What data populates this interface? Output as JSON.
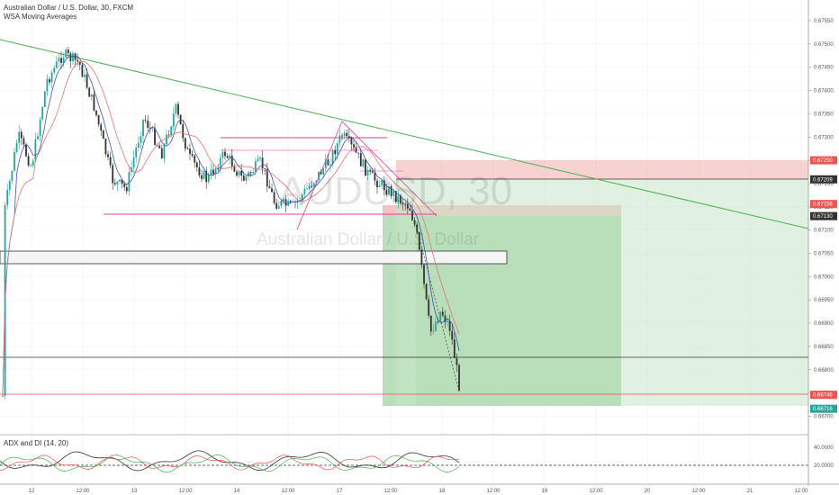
{
  "header": {
    "symbol_line": "Australian Dollar / U.S. Dollar, 30, FXCM",
    "indicator_line": "WSA Moving Averages"
  },
  "watermark": {
    "ticker": "AUDUSD, 30",
    "name": "Australian Dollar / U.S. Dollar"
  },
  "price_axis": {
    "ticks": [
      "0.67550",
      "0.67500",
      "0.67450",
      "0.67400",
      "0.67350",
      "0.67300",
      "0.67250",
      "0.67200",
      "0.67150",
      "0.67100",
      "0.67050",
      "0.67000",
      "0.66950",
      "0.66900",
      "0.66850",
      "0.66800",
      "0.66750",
      "0.66700"
    ]
  },
  "price_tags": [
    {
      "label": "0.67250",
      "price": 0.6725,
      "color": "#ef5350"
    },
    {
      "label": "0.67209",
      "price": 0.67209,
      "color": "#333333"
    },
    {
      "label": "0.67156",
      "price": 0.67156,
      "color": "#ef5350"
    },
    {
      "label": "0.67130",
      "price": 0.6713,
      "color": "#333333"
    },
    {
      "label": "0.66746",
      "price": 0.66746,
      "color": "#ef5350"
    },
    {
      "label": "0.66716",
      "price": 0.66716,
      "color": "#26a69a"
    }
  ],
  "time_axis": {
    "ticks": [
      "12",
      "12:00",
      "13",
      "12:00",
      "14",
      "12:00",
      "17",
      "12:00",
      "18",
      "12:00",
      "19",
      "12:00",
      "20",
      "12:00",
      "21",
      "12:00"
    ]
  },
  "adx_panel": {
    "title": "ADX and DI (14, 20)",
    "ticks": [
      "40.0000",
      "20.0000"
    ],
    "threshold": 20
  },
  "colors": {
    "up_candle": "#26a69a",
    "down_candle": "#333333",
    "ma_fast": "#3f51b5",
    "ma_slow": "#e57373",
    "trendline": "#4caf50",
    "zone_line": "#e040a0",
    "profit_zone": "#81c784",
    "loss_zone": "#ef9a9a"
  }
}
